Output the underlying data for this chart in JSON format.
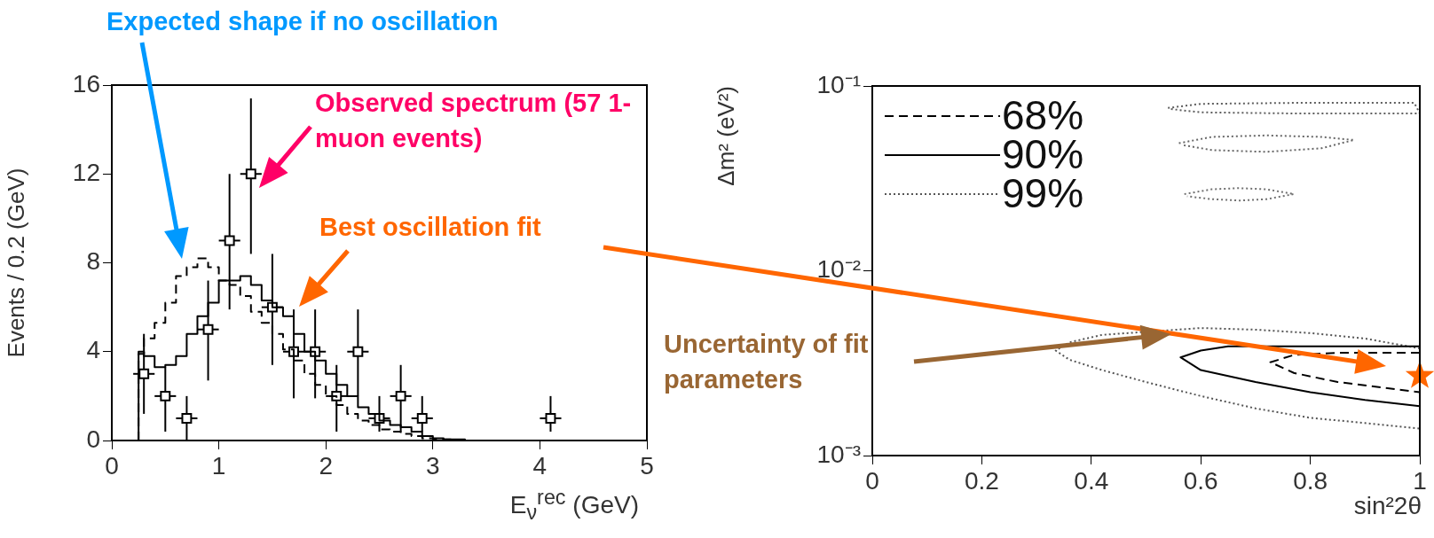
{
  "chart_data": [
    {
      "type": "step",
      "xlabel": "E$_{ν}$$^{rec}$ (GeV)",
      "ylabel": "Events / 0.2 (GeV)",
      "xlim": [
        0,
        5
      ],
      "xticks": [
        0,
        1,
        2,
        3,
        4,
        5
      ],
      "ylim": [
        0,
        16
      ],
      "yticks": [
        0,
        4,
        8,
        12,
        16
      ],
      "grid": false,
      "annotations": [
        "Expected shape if no oscillation",
        "Observed spectrum (57 1-muon events)",
        "Best oscillation fit"
      ],
      "series": [
        {
          "color": "#000000",
          "line_style": "dashed",
          "x": [
            0.25,
            0.3,
            0.4,
            0.5,
            0.6,
            0.7,
            0.8,
            0.9,
            1.0,
            1.1,
            1.2,
            1.3,
            1.4,
            1.5,
            1.6,
            1.7,
            1.8,
            1.9,
            2.0,
            2.1,
            2.2,
            2.3,
            2.4,
            2.5,
            2.6,
            2.7,
            2.8,
            2.9,
            3.0,
            3.2,
            4.0
          ],
          "values": [
            0,
            3.9,
            4.6,
            5.3,
            6.2,
            7.4,
            7.8,
            8.2,
            7.8,
            7.2,
            7.0,
            6.5,
            5.8,
            5.3,
            4.8,
            4.1,
            3.6,
            3.0,
            2.5,
            2.0,
            1.6,
            1.2,
            0.9,
            0.7,
            0.5,
            0.4,
            0.3,
            0.2,
            0.1,
            0.05,
            0
          ]
        },
        {
          "color": "#000000",
          "line_style": "solid",
          "x": [
            0.25,
            0.3,
            0.4,
            0.5,
            0.6,
            0.7,
            0.8,
            0.9,
            1.0,
            1.1,
            1.2,
            1.3,
            1.4,
            1.5,
            1.6,
            1.7,
            1.8,
            1.9,
            2.0,
            2.1,
            2.2,
            2.3,
            2.4,
            2.5,
            2.6,
            2.7,
            2.8,
            2.9,
            3.0,
            3.1,
            3.3,
            4.0
          ],
          "values": [
            0,
            4.0,
            3.8,
            3.3,
            3.4,
            3.8,
            4.8,
            5.6,
            6.2,
            7.2,
            7.2,
            7.4,
            7.0,
            6.3,
            6.0,
            5.6,
            4.8,
            4.0,
            3.6,
            3.0,
            2.5,
            2.0,
            1.5,
            1.2,
            0.9,
            0.7,
            0.6,
            0.4,
            0.2,
            0.1,
            0.05,
            0
          ]
        },
        {
          "type": "scatter",
          "color": "#000000",
          "marker": "square",
          "x": [
            0.3,
            0.5,
            0.7,
            0.9,
            1.1,
            1.3,
            1.5,
            1.7,
            1.9,
            2.1,
            2.3,
            2.5,
            2.7,
            2.9,
            4.1
          ],
          "values": [
            3,
            2,
            1,
            5,
            9,
            12,
            6,
            4,
            4,
            2,
            4,
            1,
            2,
            1,
            1
          ],
          "errors": [
            [
              1.2,
              4.8
            ],
            [
              0.4,
              3.3
            ],
            [
              0,
              2
            ],
            [
              2.7,
              7.2
            ],
            [
              5.9,
              12
            ],
            [
              8.4,
              15.4
            ],
            [
              3.4,
              8.4
            ],
            [
              1.9,
              5.9
            ],
            [
              1.9,
              5.9
            ],
            [
              0.4,
              3.4
            ],
            [
              2,
              5.9
            ],
            [
              0.4,
              2
            ],
            [
              0.4,
              3.4
            ],
            [
              0.4,
              2
            ],
            [
              0.4,
              2
            ]
          ],
          "xerrors": [
            0.1,
            0.1,
            0.1,
            0.1,
            0.1,
            0.1,
            0.1,
            0.1,
            0.1,
            0.1,
            0.1,
            0.1,
            0.1,
            0.1,
            0.1
          ]
        }
      ]
    },
    {
      "type": "line",
      "xlabel": "sin²2θ",
      "ylabel": "Δm² (eV²)",
      "xlim": [
        0,
        1
      ],
      "xticks": [
        0,
        0.2,
        0.4,
        0.6,
        0.8,
        1
      ],
      "ylim": [
        0.001,
        0.1
      ],
      "yticks": [
        {
          "value": 0.001,
          "label": "10⁻³"
        },
        {
          "value": 0.01,
          "label": "10⁻²"
        },
        {
          "value": 0.1,
          "label": "10⁻¹"
        }
      ],
      "log": "y",
      "grid": false,
      "legend": "top left",
      "annotations": [
        "Uncertainty of fit parameters"
      ],
      "series": [
        {
          "name": "68%",
          "color": "#000000",
          "line_style": "dashed",
          "x": [
            1,
            0.85,
            0.77,
            0.727,
            0.77,
            0.85,
            1
          ],
          "values": [
            0.0036,
            0.0036,
            0.0035,
            0.0032,
            0.0028,
            0.0025,
            0.0022
          ]
        },
        {
          "name": "90%",
          "color": "#000000",
          "line_style": "solid",
          "x": [
            1,
            0.8,
            0.65,
            0.6,
            0.563,
            0.6,
            0.7,
            0.8,
            0.9,
            1
          ],
          "values": [
            0.0039,
            0.0039,
            0.0039,
            0.0037,
            0.0034,
            0.0029,
            0.0025,
            0.0022,
            0.002,
            0.00185
          ]
        },
        {
          "name": "99%",
          "color": "#555555",
          "line_style": "dotted",
          "x": [
            1,
            0.9,
            0.8,
            0.7,
            0.6,
            0.42,
            0.36,
            0.335,
            0.36,
            0.42,
            0.5,
            0.6,
            0.7,
            0.8,
            0.9,
            1
          ],
          "values": [
            0.0038,
            0.0043,
            0.0046,
            0.0048,
            0.0049,
            0.0045,
            0.0041,
            0.0037,
            0.0033,
            0.0029,
            0.0025,
            0.0021,
            0.0018,
            0.0016,
            0.0015,
            0.0014
          ]
        },
        {
          "color": "#5e5e5e",
          "line_style": "dotted",
          "x": [
            0.54,
            0.6,
            0.77,
            0.99,
            1,
            0.77,
            0.6,
            0.545
          ],
          "values": [
            0.076,
            0.08,
            0.081,
            0.081,
            0.071,
            0.071,
            0.072,
            0.075
          ]
        },
        {
          "color": "#676767",
          "line_style": "dotted",
          "x": [
            0.56,
            0.62,
            0.72,
            0.82,
            0.88,
            0.82,
            0.72,
            0.62,
            0.565
          ],
          "values": [
            0.049,
            0.053,
            0.054,
            0.053,
            0.051,
            0.046,
            0.044,
            0.045,
            0.048
          ]
        },
        {
          "color": "#707070",
          "line_style": "dotted",
          "x": [
            0.57,
            0.62,
            0.67,
            0.72,
            0.77,
            0.72,
            0.67,
            0.62,
            0.575
          ],
          "values": [
            0.026,
            0.0276,
            0.028,
            0.0276,
            0.026,
            0.0244,
            0.024,
            0.0244,
            0.0253
          ]
        },
        {
          "type": "scatter",
          "color": "#ff6600",
          "marker": "star",
          "x": [
            1
          ],
          "values": [
            0.0027
          ]
        }
      ]
    }
  ]
}
